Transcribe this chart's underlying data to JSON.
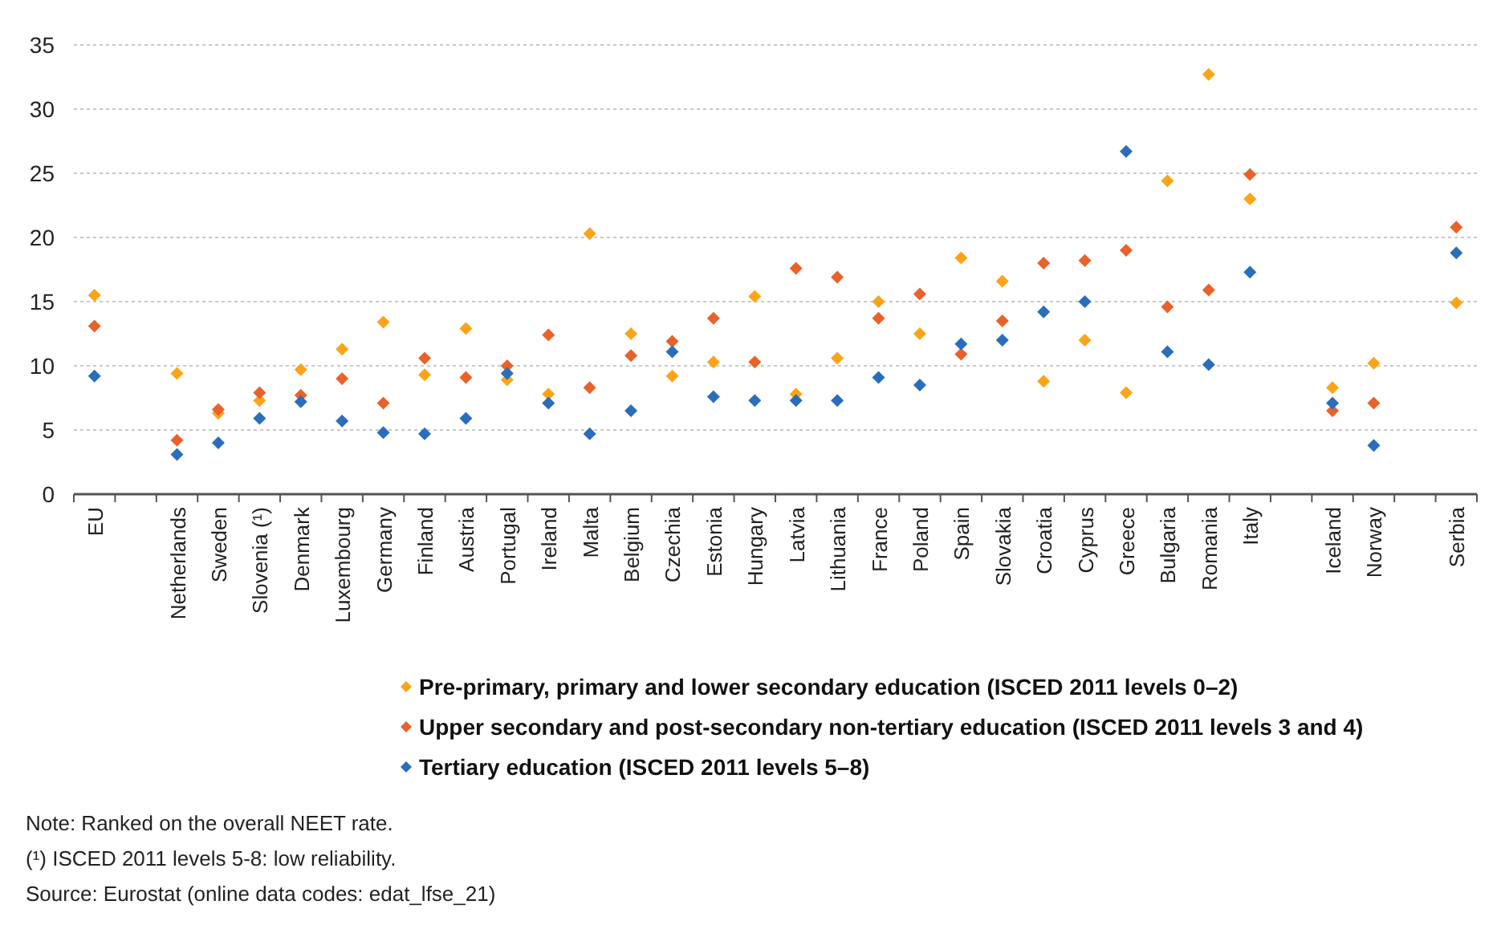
{
  "chart_data": {
    "type": "scatter",
    "categories": [
      "EU",
      null,
      "Netherlands",
      "Sweden",
      "Slovenia (¹)",
      "Denmark",
      "Luxembourg",
      "Germany",
      "Finland",
      "Austria",
      "Portugal",
      "Ireland",
      "Malta",
      "Belgium",
      "Czechia",
      "Estonia",
      "Hungary",
      "Latvia",
      "Lithuania",
      "France",
      "Poland",
      "Spain",
      "Slovakia",
      "Croatia",
      "Cyprus",
      "Greece",
      "Bulgaria",
      "Romania",
      "Italy",
      null,
      "Iceland",
      "Norway",
      null,
      "Serbia"
    ],
    "series": [
      {
        "name": "Pre-primary, primary and lower secondary education (ISCED 2011 levels 0–2)",
        "color": "#faa519",
        "values": [
          15.5,
          null,
          9.4,
          6.3,
          7.3,
          9.7,
          11.3,
          13.4,
          9.3,
          12.9,
          8.9,
          7.8,
          20.3,
          12.5,
          9.2,
          10.3,
          15.4,
          7.8,
          10.6,
          15.0,
          12.5,
          18.4,
          16.6,
          8.8,
          12.0,
          7.9,
          24.4,
          32.7,
          23.0,
          null,
          8.3,
          10.2,
          null,
          14.9
        ]
      },
      {
        "name": "Upper secondary and post-secondary non-tertiary education (ISCED 2011 levels 3 and 4)",
        "color": "#e9622a",
        "values": [
          13.1,
          null,
          4.2,
          6.6,
          7.9,
          7.7,
          9.0,
          7.1,
          10.6,
          9.1,
          10.0,
          12.4,
          8.3,
          10.8,
          11.9,
          13.7,
          10.3,
          17.6,
          16.9,
          13.7,
          15.6,
          10.9,
          13.5,
          18.0,
          18.2,
          19.0,
          14.6,
          15.9,
          24.9,
          null,
          6.5,
          7.1,
          null,
          20.8
        ]
      },
      {
        "name": "Tertiary education (ISCED 2011 levels 5–8)",
        "color": "#2a6ebb",
        "values": [
          9.2,
          null,
          3.1,
          4.0,
          5.9,
          7.2,
          5.7,
          4.8,
          4.7,
          5.9,
          9.4,
          7.1,
          4.7,
          6.5,
          11.1,
          7.6,
          7.3,
          7.3,
          7.3,
          9.1,
          8.5,
          11.7,
          12.0,
          14.2,
          15.0,
          26.7,
          11.1,
          10.1,
          17.3,
          null,
          7.1,
          3.8,
          null,
          18.8
        ]
      }
    ],
    "ylim": [
      0,
      35
    ],
    "yticks": [
      0,
      5,
      10,
      15,
      20,
      25,
      30,
      35
    ],
    "grid": "y",
    "legend": "bottom",
    "marker": "diamond",
    "annotations": [
      "Note: Ranked on the overall NEET rate.",
      "(¹) ISCED 2011 levels 5-8: low reliability.",
      "Source: Eurostat (online data codes: edat_lfse_21)"
    ]
  }
}
